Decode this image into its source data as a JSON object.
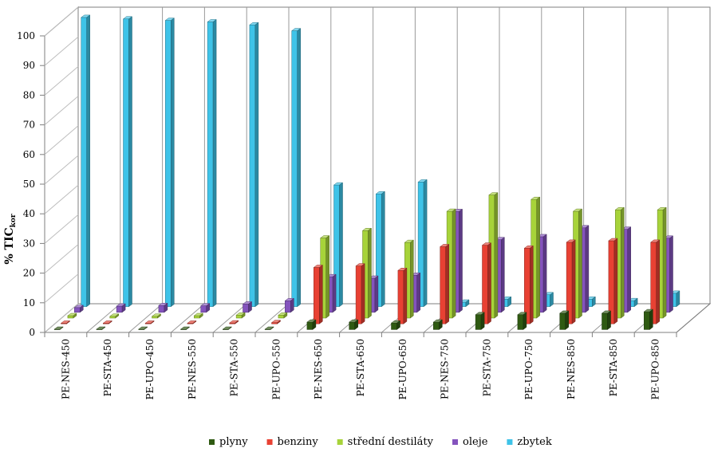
{
  "chart_data": {
    "type": "bar",
    "title": "",
    "ylabel": "% TIC",
    "ylabel_sub": "kor",
    "xlabel": "",
    "ylim": [
      0,
      100
    ],
    "yticks": [
      0,
      10,
      20,
      30,
      40,
      50,
      60,
      70,
      80,
      90,
      100
    ],
    "categories": [
      "PE-NES-450",
      "PE-STA-450",
      "PE-UPO-450",
      "PE-NES-550",
      "PE-STA-550",
      "PE-UPO-550",
      "PE-NES-650",
      "PE-STA-650",
      "PE-UPO-650",
      "PE-NES-750",
      "PE-STA-750",
      "PE-UPO-750",
      "PE-NES-850",
      "PE-STA-850",
      "PE-UPO-850"
    ],
    "series": [
      {
        "name": "plyny",
        "color": "#2f5a12",
        "values": [
          0.1,
          0.1,
          0.1,
          0.1,
          0.1,
          0.1,
          2.5,
          2.5,
          2.2,
          2.5,
          5,
          5,
          5.5,
          5.5,
          6
        ]
      },
      {
        "name": "benziny",
        "color": "#e84133",
        "values": [
          0.2,
          0.2,
          0.2,
          0.2,
          0.3,
          0.4,
          19,
          19.5,
          18,
          26,
          26.5,
          25.5,
          27.5,
          28,
          27.5
        ]
      },
      {
        "name": "střední destiláty",
        "color": "#a7d33a",
        "values": [
          0.8,
          0.6,
          0.6,
          0.8,
          1,
          1,
          27,
          29.5,
          25.5,
          36,
          41.5,
          40,
          36,
          36.5,
          36.5
        ]
      },
      {
        "name": "oleje",
        "color": "#8453bd",
        "values": [
          1.6,
          2.1,
          2.3,
          2.2,
          2.8,
          3.9,
          12,
          11.5,
          12.5,
          34,
          24.5,
          25.5,
          28.5,
          28,
          25
        ]
      },
      {
        "name": "zbytek",
        "color": "#3ec3e8",
        "values": [
          97.5,
          97,
          96.5,
          96,
          95,
          93,
          41,
          38,
          42,
          1.5,
          2.5,
          4,
          2.5,
          2,
          4.5
        ]
      }
    ],
    "legend_position": "bottom",
    "grid": "vertical walls",
    "axis_mode": "3d-perspective"
  }
}
